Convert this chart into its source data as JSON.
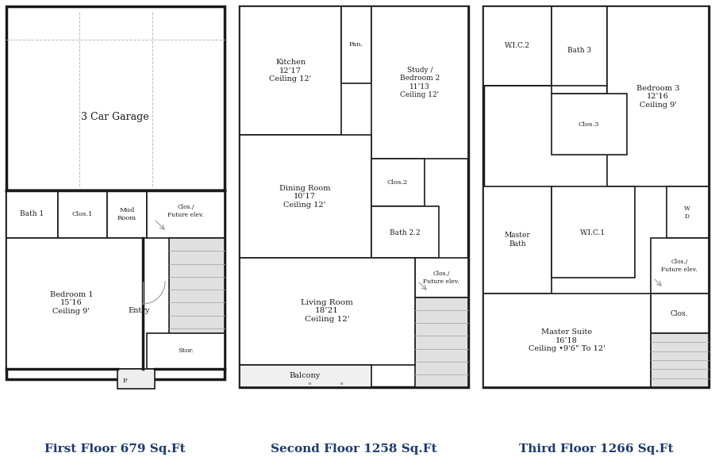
{
  "background_color": "#ffffff",
  "title_color": "#1e3a6e",
  "wall_color": "#1a1a1a",
  "stair_fill": "#e0e0e0",
  "room_fill": "#ffffff",
  "floor_labels": [
    "First Floor 679 Sq.Ft",
    "Second Floor 1258 Sq.Ft",
    "Third Floor 1266 Sq.Ft"
  ],
  "lw_outer": 2.5,
  "lw_inner": 1.2
}
